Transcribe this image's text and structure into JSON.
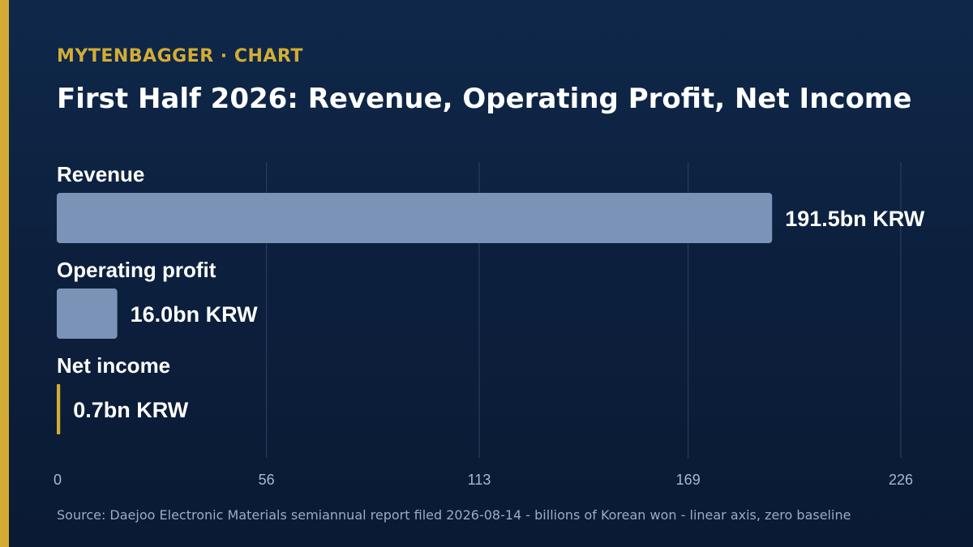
{
  "header": {
    "brand": "MYTENBAGGER · CHART",
    "title": "First Half 2026: Revenue, Operating Profit, Net Income"
  },
  "footer": {
    "source": "Source: Daejoo Electronic Materials semiannual report filed 2026-08-14 - billions of Korean won - linear axis, zero baseline"
  },
  "colors": {
    "accent": "#d4ac35",
    "bar": "#7b93b7",
    "grid": "#2c4266",
    "tick": "#a9b8cf",
    "background": "#0f284a"
  },
  "chart_data": {
    "type": "bar",
    "orientation": "horizontal",
    "title": "First Half 2026: Revenue, Operating Profit, Net Income",
    "categories": [
      "Revenue",
      "Operating profit",
      "Net income"
    ],
    "values": [
      191.5,
      16.0,
      0.7
    ],
    "value_labels": [
      "191.5bn KRW",
      "16.0bn KRW",
      "0.7bn KRW"
    ],
    "bar_colors": [
      "#7b93b7",
      "#7b93b7",
      "#d4ac35"
    ],
    "xlim": [
      0,
      226
    ],
    "xticks": [
      0,
      56,
      113,
      169,
      226
    ],
    "xlabel": "",
    "ylabel": "",
    "grid": true
  }
}
